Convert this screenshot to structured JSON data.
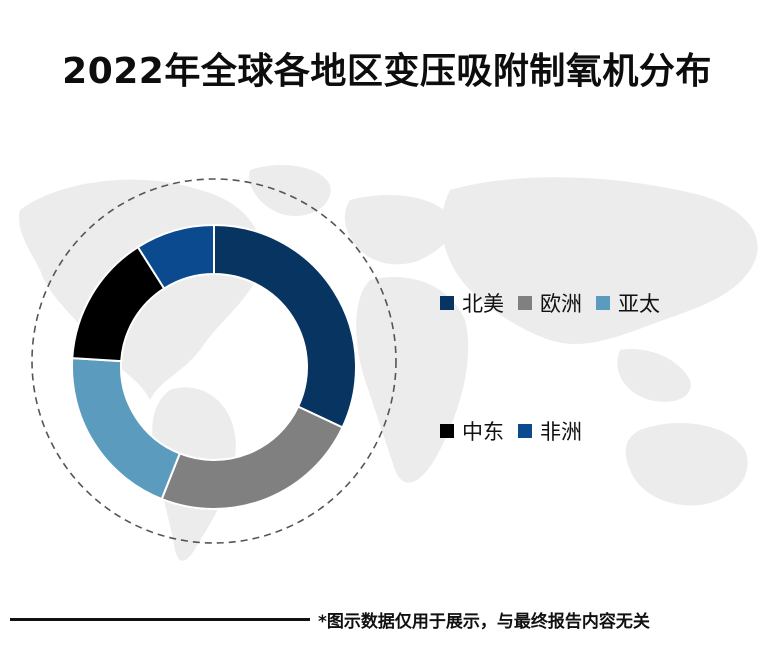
{
  "chart_data": {
    "type": "pie",
    "variant": "donut",
    "title": "2022年全球各地区变压吸附制氧机分布",
    "categories": [
      "北美",
      "欧洲",
      "亚太",
      "中东",
      "非洲"
    ],
    "values": [
      32,
      24,
      20,
      15,
      9
    ],
    "colors": [
      "#083461",
      "#808080",
      "#5b9bbd",
      "#000000",
      "#0b4a8f"
    ],
    "legend_position": "right",
    "grid": false
  },
  "footer": {
    "note": "*图示数据仅用于展示，与最终报告内容无关"
  }
}
